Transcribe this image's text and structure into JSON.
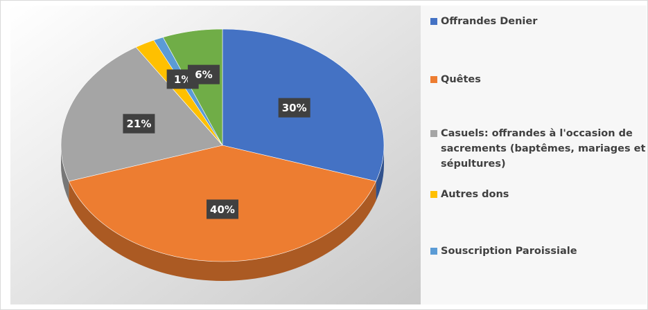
{
  "chart_data": {
    "type": "pie",
    "categories": [
      "Offrandes Denier",
      "Quêtes",
      "Casuels: offrandes à l'occasion de sacrements (baptêmes, mariages et sépultures)",
      "Autres dons",
      "Souscription Paroissiale",
      null
    ],
    "values": [
      30,
      40,
      21,
      2,
      1,
      6
    ],
    "value_labels": [
      "30%",
      "40%",
      "21%",
      null,
      "1%",
      "6%"
    ],
    "colors": [
      "#4472c4",
      "#ed7d31",
      "#a5a5a5",
      "#ffc000",
      "#5b9bd5",
      "#70ad47"
    ],
    "legend": "right"
  }
}
